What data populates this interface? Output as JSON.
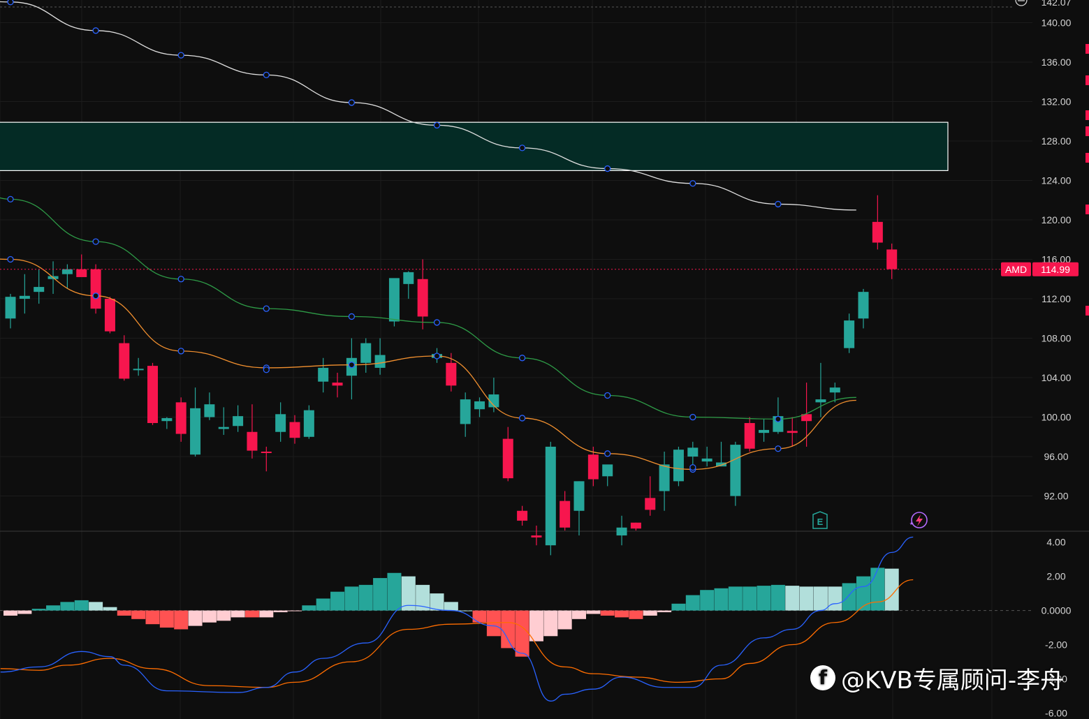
{
  "chart_data": [
    {
      "type": "candlestick",
      "ticker": "AMD",
      "last_price": "114.99",
      "y_ticks": [
        "140.00",
        "136.00",
        "132.00",
        "128.00",
        "124.00",
        "120.00",
        "116.00",
        "112.00",
        "108.00",
        "104.00",
        "100.00",
        "96.00",
        "92.00"
      ],
      "ylim": [
        88.5,
        142.3
      ],
      "top_partial_tick": "142.07",
      "zone": {
        "low": 125.0,
        "high": 129.9
      },
      "candles": [
        [
          110.0,
          112.5,
          109.0,
          112.2
        ],
        [
          112.0,
          114.5,
          110.5,
          112.3
        ],
        [
          112.7,
          115.0,
          111.5,
          113.2
        ],
        [
          114.0,
          115.8,
          112.5,
          114.3
        ],
        [
          114.5,
          115.5,
          113.0,
          115.0
        ],
        [
          115.0,
          116.5,
          114.5,
          114.2
        ],
        [
          115.0,
          115.5,
          110.5,
          111.0
        ],
        [
          112.0,
          112.2,
          108.5,
          108.7
        ],
        [
          107.5,
          108.3,
          103.7,
          103.9
        ],
        [
          104.9,
          106.0,
          104.2,
          104.9
        ],
        [
          105.2,
          105.5,
          99.2,
          99.4
        ],
        [
          99.6,
          100.0,
          98.8,
          99.9
        ],
        [
          101.5,
          102.0,
          97.5,
          98.3
        ],
        [
          96.2,
          103.0,
          96.0,
          100.9
        ],
        [
          100.0,
          102.5,
          99.7,
          101.3
        ],
        [
          98.8,
          101.0,
          98.2,
          99.0
        ],
        [
          99.1,
          101.2,
          98.5,
          100.1
        ],
        [
          98.5,
          101.3,
          95.8,
          96.6
        ],
        [
          96.5,
          97.0,
          94.5,
          96.4
        ],
        [
          98.5,
          101.5,
          97.5,
          100.3
        ],
        [
          99.5,
          100.2,
          97.3,
          97.9
        ],
        [
          98.0,
          101.2,
          97.8,
          100.7
        ],
        [
          103.6,
          106.0,
          102.5,
          105.0
        ],
        [
          103.5,
          104.5,
          102.0,
          103.2
        ],
        [
          104.2,
          108.0,
          101.8,
          106.0
        ],
        [
          105.5,
          108.0,
          104.5,
          107.5
        ],
        [
          105.0,
          108.0,
          104.3,
          106.3
        ],
        [
          109.7,
          114.0,
          109.2,
          114.1
        ],
        [
          113.5,
          114.8,
          112.0,
          114.7
        ],
        [
          114.0,
          116.0,
          108.9,
          110.2
        ],
        [
          106.0,
          107.0,
          105.5,
          106.4
        ],
        [
          105.5,
          106.5,
          102.6,
          103.2
        ],
        [
          99.3,
          102.5,
          98.0,
          101.8
        ],
        [
          100.8,
          102.0,
          100.0,
          101.6
        ],
        [
          101.0,
          104.0,
          100.5,
          102.3
        ],
        [
          97.8,
          99.0,
          93.5,
          93.8
        ],
        [
          90.5,
          91.0,
          89.0,
          89.5
        ],
        [
          88.0,
          89.0,
          87.0,
          87.8
        ],
        [
          87.0,
          97.5,
          86.0,
          97.0
        ],
        [
          91.5,
          92.5,
          88.5,
          88.8
        ],
        [
          90.5,
          93.5,
          88.0,
          93.5
        ],
        [
          96.2,
          97.0,
          93.0,
          93.7
        ],
        [
          94.0,
          95.0,
          93.0,
          95.2
        ],
        [
          88.0,
          90.0,
          87.0,
          88.8
        ],
        [
          89.3,
          89.3,
          88.5,
          88.7
        ],
        [
          91.8,
          94.0,
          90.0,
          90.6
        ],
        [
          92.5,
          96.5,
          90.5,
          95.2
        ],
        [
          93.5,
          97.0,
          93.0,
          96.7
        ],
        [
          96.0,
          97.5,
          95.0,
          96.9
        ],
        [
          95.5,
          97.0,
          95.0,
          95.8
        ],
        [
          95.0,
          97.5,
          95.0,
          95.4
        ],
        [
          92.0,
          97.5,
          91.0,
          97.2
        ],
        [
          99.4,
          100.0,
          96.5,
          96.8
        ],
        [
          98.4,
          99.8,
          97.5,
          98.7
        ],
        [
          98.5,
          102.0,
          98.3,
          100.1
        ],
        [
          98.6,
          100.0,
          97.0,
          98.4
        ],
        [
          100.3,
          103.5,
          97.0,
          99.6
        ],
        [
          101.5,
          105.5,
          100.0,
          101.8
        ],
        [
          102.5,
          103.5,
          101.5,
          103.0
        ],
        [
          107.0,
          110.5,
          106.5,
          109.8
        ],
        [
          110.0,
          113.0,
          109.0,
          112.7
        ],
        [
          119.8,
          122.5,
          117.0,
          117.7
        ],
        [
          117.0,
          117.6,
          114.0,
          115.0
        ]
      ],
      "ma_white": [
        [
          -6,
          143.0
        ],
        [
          0,
          142.1
        ],
        [
          6,
          139.2
        ],
        [
          12,
          136.7
        ],
        [
          18,
          134.7
        ],
        [
          24,
          131.9
        ],
        [
          30,
          129.6
        ],
        [
          36,
          127.3
        ],
        [
          42,
          125.2
        ],
        [
          48,
          123.7
        ],
        [
          54,
          121.6
        ],
        [
          59.5,
          121.0
        ]
      ],
      "ma_green": [
        [
          -6,
          128.0
        ],
        [
          0,
          122.1
        ],
        [
          6,
          117.8
        ],
        [
          12,
          114.0
        ],
        [
          18,
          111.0
        ],
        [
          24,
          110.2
        ],
        [
          30,
          109.6
        ],
        [
          36,
          106.0
        ],
        [
          42,
          102.2
        ],
        [
          48,
          100.0
        ],
        [
          54,
          99.8
        ],
        [
          59.5,
          102.0
        ]
      ],
      "ma_orange": [
        [
          -6,
          117.0
        ],
        [
          0,
          116.0
        ],
        [
          6,
          112.3
        ],
        [
          12,
          106.7
        ],
        [
          18,
          105.0
        ],
        [
          24,
          105.3
        ],
        [
          30,
          106.2
        ],
        [
          36,
          99.9
        ],
        [
          42,
          96.3
        ],
        [
          48,
          94.7
        ],
        [
          54,
          96.8
        ],
        [
          59.5,
          101.7
        ]
      ],
      "circles_white": [
        0,
        6,
        12,
        18,
        24,
        30,
        36,
        42,
        48,
        54
      ],
      "circles_green": [
        0,
        6,
        12,
        18,
        24,
        30,
        36,
        42,
        48,
        54
      ],
      "circles_orange": [
        0,
        6,
        12,
        18,
        24,
        30,
        36,
        42,
        48,
        54
      ],
      "circle_extra": [
        [
          -6,
          100.5
        ],
        [
          18,
          104.8
        ],
        [
          48,
          94.9
        ]
      ]
    },
    {
      "type": "macd",
      "y_ticks": [
        "4.00",
        "2.00",
        "0.0000",
        "-2.00",
        "-4.00",
        "-6.00"
      ],
      "ylim": [
        -6.35,
        4.6
      ],
      "histogram": [
        -0.3,
        -0.2,
        0.1,
        0.3,
        0.5,
        0.6,
        0.5,
        0.2,
        -0.3,
        -0.5,
        -0.8,
        -1.0,
        -1.1,
        -0.9,
        -0.7,
        -0.6,
        -0.4,
        -0.4,
        -0.4,
        -0.1,
        0.0,
        0.3,
        0.7,
        1.1,
        1.4,
        1.5,
        1.9,
        2.2,
        2.0,
        1.5,
        1.0,
        0.5,
        0.0,
        -0.7,
        -1.5,
        -2.2,
        -2.7,
        -1.8,
        -1.5,
        -1.1,
        -0.5,
        -0.2,
        -0.3,
        -0.4,
        -0.5,
        -0.3,
        -0.1,
        0.4,
        0.9,
        1.2,
        1.3,
        1.4,
        1.4,
        1.45,
        1.5,
        1.45,
        1.4,
        1.4,
        1.4,
        1.6,
        2.0,
        2.5,
        2.45
      ],
      "hist_colors": [
        "#ffcdd2",
        "#ffcdd2",
        "#26a69a",
        "#26a69a",
        "#26a69a",
        "#26a69a",
        "#b2dfdb",
        "#b2dfdb",
        "#ff5252",
        "#ff5252",
        "#ff5252",
        "#ff5252",
        "#ff5252",
        "#ffcdd2",
        "#ffcdd2",
        "#ffcdd2",
        "#ffcdd2",
        "#ff5252",
        "#ffcdd2",
        "#ffcdd2",
        "#ffcdd2",
        "#26a69a",
        "#26a69a",
        "#26a69a",
        "#26a69a",
        "#26a69a",
        "#26a69a",
        "#26a69a",
        "#b2dfdb",
        "#b2dfdb",
        "#b2dfdb",
        "#b2dfdb",
        "#b2dfdb",
        "#ff5252",
        "#ff5252",
        "#ff5252",
        "#ff5252",
        "#ffcdd2",
        "#ffcdd2",
        "#ffcdd2",
        "#ffcdd2",
        "#ffcdd2",
        "#ff5252",
        "#ff5252",
        "#ff5252",
        "#ffcdd2",
        "#ffcdd2",
        "#26a69a",
        "#26a69a",
        "#26a69a",
        "#26a69a",
        "#26a69a",
        "#26a69a",
        "#26a69a",
        "#26a69a",
        "#b2dfdb",
        "#b2dfdb",
        "#b2dfdb",
        "#b2dfdb",
        "#26a69a",
        "#26a69a",
        "#26a69a",
        "#b2dfdb"
      ],
      "macd_line": [
        [
          -0.7,
          -3.6
        ],
        [
          2,
          -3.3
        ],
        [
          5,
          -2.4
        ],
        [
          7,
          -2.7
        ],
        [
          8,
          -3.2
        ],
        [
          11,
          -4.7
        ],
        [
          16,
          -4.8
        ],
        [
          18,
          -4.5
        ],
        [
          20,
          -3.6
        ],
        [
          22,
          -2.8
        ],
        [
          25,
          -1.9
        ],
        [
          28,
          0.3
        ],
        [
          31,
          0.0
        ],
        [
          34,
          -0.9
        ],
        [
          36,
          -2.5
        ],
        [
          38,
          -5.3
        ],
        [
          39,
          -4.9
        ],
        [
          41,
          -4.6
        ],
        [
          43,
          -3.9
        ],
        [
          46,
          -4.5
        ],
        [
          48,
          -4.5
        ],
        [
          50,
          -3.2
        ],
        [
          53,
          -1.6
        ],
        [
          55,
          -1.1
        ],
        [
          57,
          0.0
        ],
        [
          58,
          0.4
        ],
        [
          60,
          1.4
        ],
        [
          62,
          3.4
        ],
        [
          63.5,
          4.3
        ]
      ],
      "signal_line": [
        [
          -0.7,
          -3.4
        ],
        [
          2,
          -3.5
        ],
        [
          4,
          -3.2
        ],
        [
          7,
          -2.8
        ],
        [
          10,
          -3.4
        ],
        [
          14,
          -4.4
        ],
        [
          18,
          -4.5
        ],
        [
          20,
          -4.2
        ],
        [
          24,
          -3.0
        ],
        [
          28,
          -1.1
        ],
        [
          31,
          -0.8
        ],
        [
          35,
          -0.7
        ],
        [
          39,
          -3.3
        ],
        [
          41,
          -3.7
        ],
        [
          44,
          -3.9
        ],
        [
          47,
          -4.2
        ],
        [
          50,
          -4.0
        ],
        [
          52,
          -3.1
        ],
        [
          55,
          -2.0
        ],
        [
          58,
          -0.7
        ],
        [
          61,
          0.5
        ],
        [
          63.5,
          1.8
        ]
      ]
    }
  ],
  "watermark": {
    "text": "@KVB专属顾问-李舟",
    "icon": "facebook-icon"
  },
  "colors": {
    "up": "#26a69a",
    "down": "#f7164e",
    "ma_white": "#e0e0e0",
    "ma_green": "#2e9b47",
    "ma_orange": "#f2902f",
    "macd": "#2962ff",
    "signal": "#ff6d00",
    "zone": "#042b25",
    "price_tag": "#f7164e"
  },
  "markers": {
    "earnings": "E",
    "earnings_icon": "earnings-icon",
    "dividend_icon": "lightning-icon"
  }
}
